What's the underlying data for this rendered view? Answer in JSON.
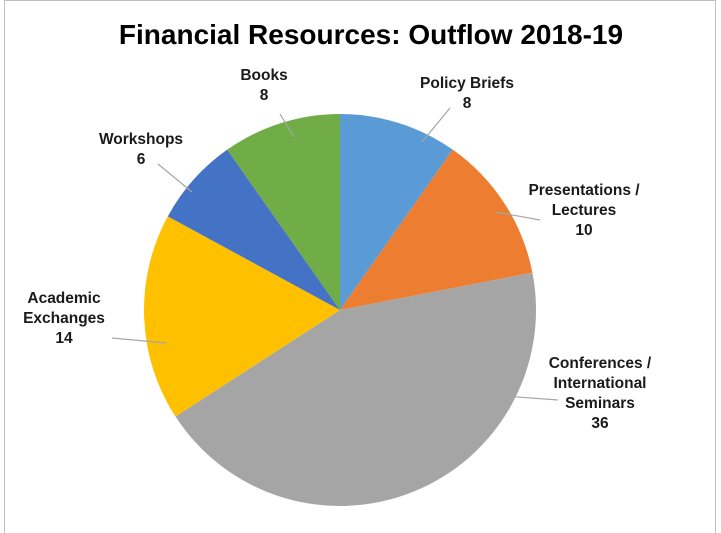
{
  "chart_data": {
    "type": "pie",
    "title": "Financial Resources: Outflow 2018-19",
    "slices": [
      {
        "name": "Policy Briefs",
        "label_lines": [
          "Policy Briefs",
          "8"
        ],
        "value": 8,
        "color": "#5b9bd5"
      },
      {
        "name": "Presentations / Lectures",
        "label_lines": [
          "Presentations /",
          "Lectures",
          "10"
        ],
        "value": 10,
        "color": "#ed7d31"
      },
      {
        "name": "Conferences / International Seminars",
        "label_lines": [
          "Conferences /",
          "International",
          "Seminars",
          "36"
        ],
        "value": 36,
        "color": "#a5a5a5"
      },
      {
        "name": "Academic Exchanges",
        "label_lines": [
          "Academic",
          "Exchanges",
          "14"
        ],
        "value": 14,
        "color": "#ffc000"
      },
      {
        "name": "Workshops",
        "label_lines": [
          "Workshops",
          "6"
        ],
        "value": 6,
        "color": "#4472c4"
      },
      {
        "name": "Books",
        "label_lines": [
          "Books",
          "8"
        ],
        "value": 8,
        "color": "#70ad47"
      }
    ],
    "start_angle": "12 o'clock",
    "direction": "clockwise",
    "legend": "none (data labels with leader lines)"
  }
}
